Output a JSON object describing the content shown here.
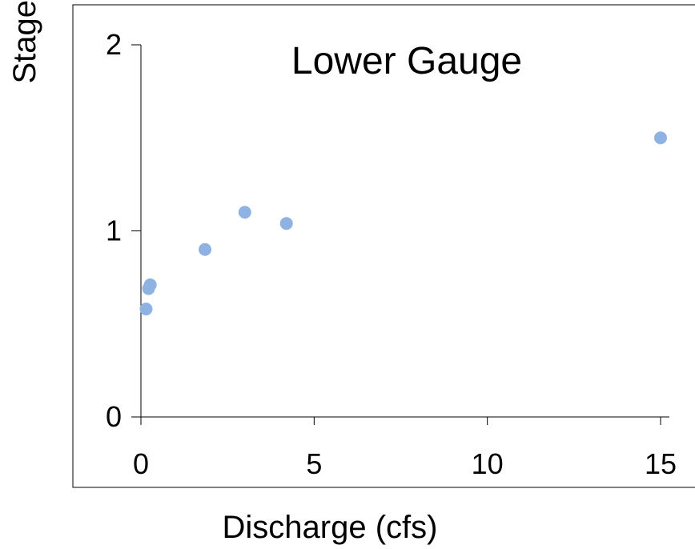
{
  "chart_data": {
    "type": "scatter",
    "title": "Lower Gauge",
    "xlabel": "Discharge (cfs)",
    "ylabel": "Stage",
    "xlim": [
      0,
      15
    ],
    "ylim": [
      0,
      2
    ],
    "xticks": [
      0,
      5,
      10,
      15
    ],
    "yticks": [
      0,
      1,
      2
    ],
    "grid": false,
    "marker_color": "#8EB3E3",
    "series": [
      {
        "points": [
          {
            "x": 0.15,
            "y": 0.58
          },
          {
            "x": 0.22,
            "y": 0.69
          },
          {
            "x": 0.27,
            "y": 0.71
          },
          {
            "x": 1.85,
            "y": 0.9
          },
          {
            "x": 3.0,
            "y": 1.1
          },
          {
            "x": 4.2,
            "y": 1.04
          },
          {
            "x": 15.0,
            "y": 1.5
          }
        ]
      }
    ]
  }
}
